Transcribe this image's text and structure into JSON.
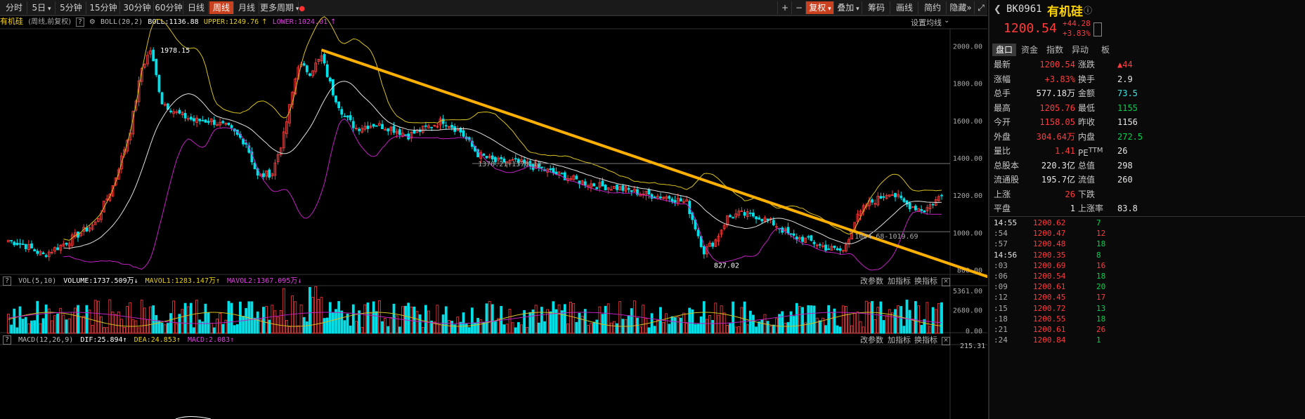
{
  "periods": [
    {
      "label": "分时",
      "name": "period-tab-intraday"
    },
    {
      "label": "5日",
      "name": "period-tab-5day",
      "dropdown": true
    },
    {
      "label": "5分钟",
      "name": "period-tab-5min"
    },
    {
      "label": "15分钟",
      "name": "period-tab-15min"
    },
    {
      "label": "30分钟",
      "name": "period-tab-30min"
    },
    {
      "label": "60分钟",
      "name": "period-tab-60min"
    },
    {
      "label": "日线",
      "name": "period-tab-daily"
    },
    {
      "label": "周线",
      "name": "period-tab-weekly",
      "active": true
    },
    {
      "label": "月线",
      "name": "period-tab-monthly"
    },
    {
      "label": "更多周期",
      "name": "period-tab-more",
      "dropdown": true
    }
  ],
  "toolbar": {
    "zoom_in": "+",
    "zoom_out": "−",
    "fuquan": "复权",
    "overlay": "叠加",
    "chips": "筹码",
    "draw": "画线",
    "simple": "简约",
    "hide": "隐藏",
    "expand_icon": "»",
    "fullscreen_icon": "⤢"
  },
  "info": {
    "name": "有机硅",
    "mode": "(周线,前复权)",
    "help": "?",
    "boll_label": "BOLL(20,2)",
    "boll": "BOLL:1136.88",
    "upper": "UPPER:1249.76",
    "lower": "LOWER:1024.01",
    "settings": "设置均线"
  },
  "annotations": {
    "high": "1978.15",
    "low": "827.02",
    "mid1": "1370.21-1370.13",
    "mid2": "1004.68-1019.69"
  },
  "price_axis": [
    "2000.00",
    "1800.00",
    "1600.00",
    "1400.00",
    "1200.00",
    "1000.00",
    "800.00"
  ],
  "vol": {
    "label": "VOL(5,10)",
    "volume": "VOLUME:1737.509万",
    "mavol1": "MAVOL1:1283.147万",
    "mavol2": "MAVOL2:1367.095万",
    "axis": [
      "5361.00",
      "2680.00",
      "0.00"
    ],
    "params": "改参数",
    "add": "加指标",
    "change": "换指标",
    "close": "×"
  },
  "macd": {
    "label": "MACD(12,26,9)",
    "dif": "DIF:25.894",
    "dea": "DEA:24.853",
    "macd": "MACD:2.083",
    "axis_top": "215.31",
    "params": "改参数",
    "add": "加指标",
    "change": "换指标",
    "close": "×"
  },
  "quote": {
    "code": "BK0961",
    "name": "有机硅",
    "price": "1200.54",
    "change": "+44.28",
    "pct": "+3.83%",
    "tabs": [
      "盘口",
      "资金",
      "指数",
      "异动",
      "板"
    ],
    "rows": [
      [
        {
          "l": "最新",
          "v": "1200.54",
          "c": "red"
        },
        {
          "l": "涨跌",
          "v": "▲44",
          "c": "red"
        }
      ],
      [
        {
          "l": "涨幅",
          "v": "+3.83%",
          "c": "red"
        },
        {
          "l": "换手",
          "v": "2.9",
          "c": "wht"
        }
      ],
      [
        {
          "l": "总手",
          "v": "577.18万",
          "c": "wht"
        },
        {
          "l": "金额",
          "v": "73.5",
          "c": "cyn"
        }
      ],
      [
        {
          "l": "最高",
          "v": "1205.76",
          "c": "red"
        },
        {
          "l": "最低",
          "v": "1155",
          "c": "grn"
        }
      ],
      [
        {
          "l": "今开",
          "v": "1158.05",
          "c": "red"
        },
        {
          "l": "昨收",
          "v": "1156",
          "c": "wht"
        }
      ],
      [
        {
          "l": "外盘",
          "v": "304.64万",
          "c": "red"
        },
        {
          "l": "内盘",
          "v": "272.5",
          "c": "grn"
        }
      ],
      [
        {
          "l": "量比",
          "v": "1.41",
          "c": "red"
        },
        {
          "l": "PE<sup>TTM</sup>",
          "v": "26",
          "c": "wht"
        }
      ],
      [
        {
          "l": "总股本",
          "v": "220.3亿",
          "c": "wht"
        },
        {
          "l": "总值",
          "v": "298",
          "c": "wht"
        }
      ],
      [
        {
          "l": "流通股",
          "v": "195.7亿",
          "c": "wht"
        },
        {
          "l": "流值",
          "v": "260",
          "c": "wht"
        }
      ],
      [
        {
          "l": "上涨",
          "v": "26",
          "c": "red"
        },
        {
          "l": "下跌",
          "v": "",
          "c": "wht"
        }
      ],
      [
        {
          "l": "平盘",
          "v": "1",
          "c": "wht"
        },
        {
          "l": "上涨率",
          "v": "83.8",
          "c": "wht"
        }
      ]
    ],
    "ticks": [
      {
        "t": "14:55",
        "p": "1200.62",
        "v": "7"
      },
      {
        "t": ":54",
        "p": "1200.47",
        "v": "12"
      },
      {
        "t": ":57",
        "p": "1200.48",
        "v": "18"
      },
      {
        "t": "14:56",
        "p": "1200.35",
        "v": "8"
      },
      {
        "t": ":03",
        "p": "1200.69",
        "v": "16"
      },
      {
        "t": ":06",
        "p": "1200.54",
        "v": "18"
      },
      {
        "t": ":09",
        "p": "1200.61",
        "v": "20"
      },
      {
        "t": ":12",
        "p": "1200.45",
        "v": "17"
      },
      {
        "t": ":15",
        "p": "1200.72",
        "v": "13"
      },
      {
        "t": ":18",
        "p": "1200.55",
        "v": "18"
      },
      {
        "t": ":21",
        "p": "1200.61",
        "v": "26"
      },
      {
        "t": ":24",
        "p": "1200.84",
        "v": "1"
      }
    ]
  },
  "colors": {
    "up": "#ff3b3b",
    "down": "#00e0e8",
    "boll_mid": "#e0e0e0",
    "upper": "#d8c020",
    "lower": "#c020c0",
    "trend": "#ffb000"
  },
  "chart_data": {
    "type": "candlestick",
    "title": "有机硅 (周线,前复权)",
    "ylim": [
      780,
      2080
    ],
    "trendline": [
      [
        46,
        1978
      ],
      [
        86,
        1200
      ],
      [
        100,
        830
      ]
    ],
    "candles": []
  }
}
